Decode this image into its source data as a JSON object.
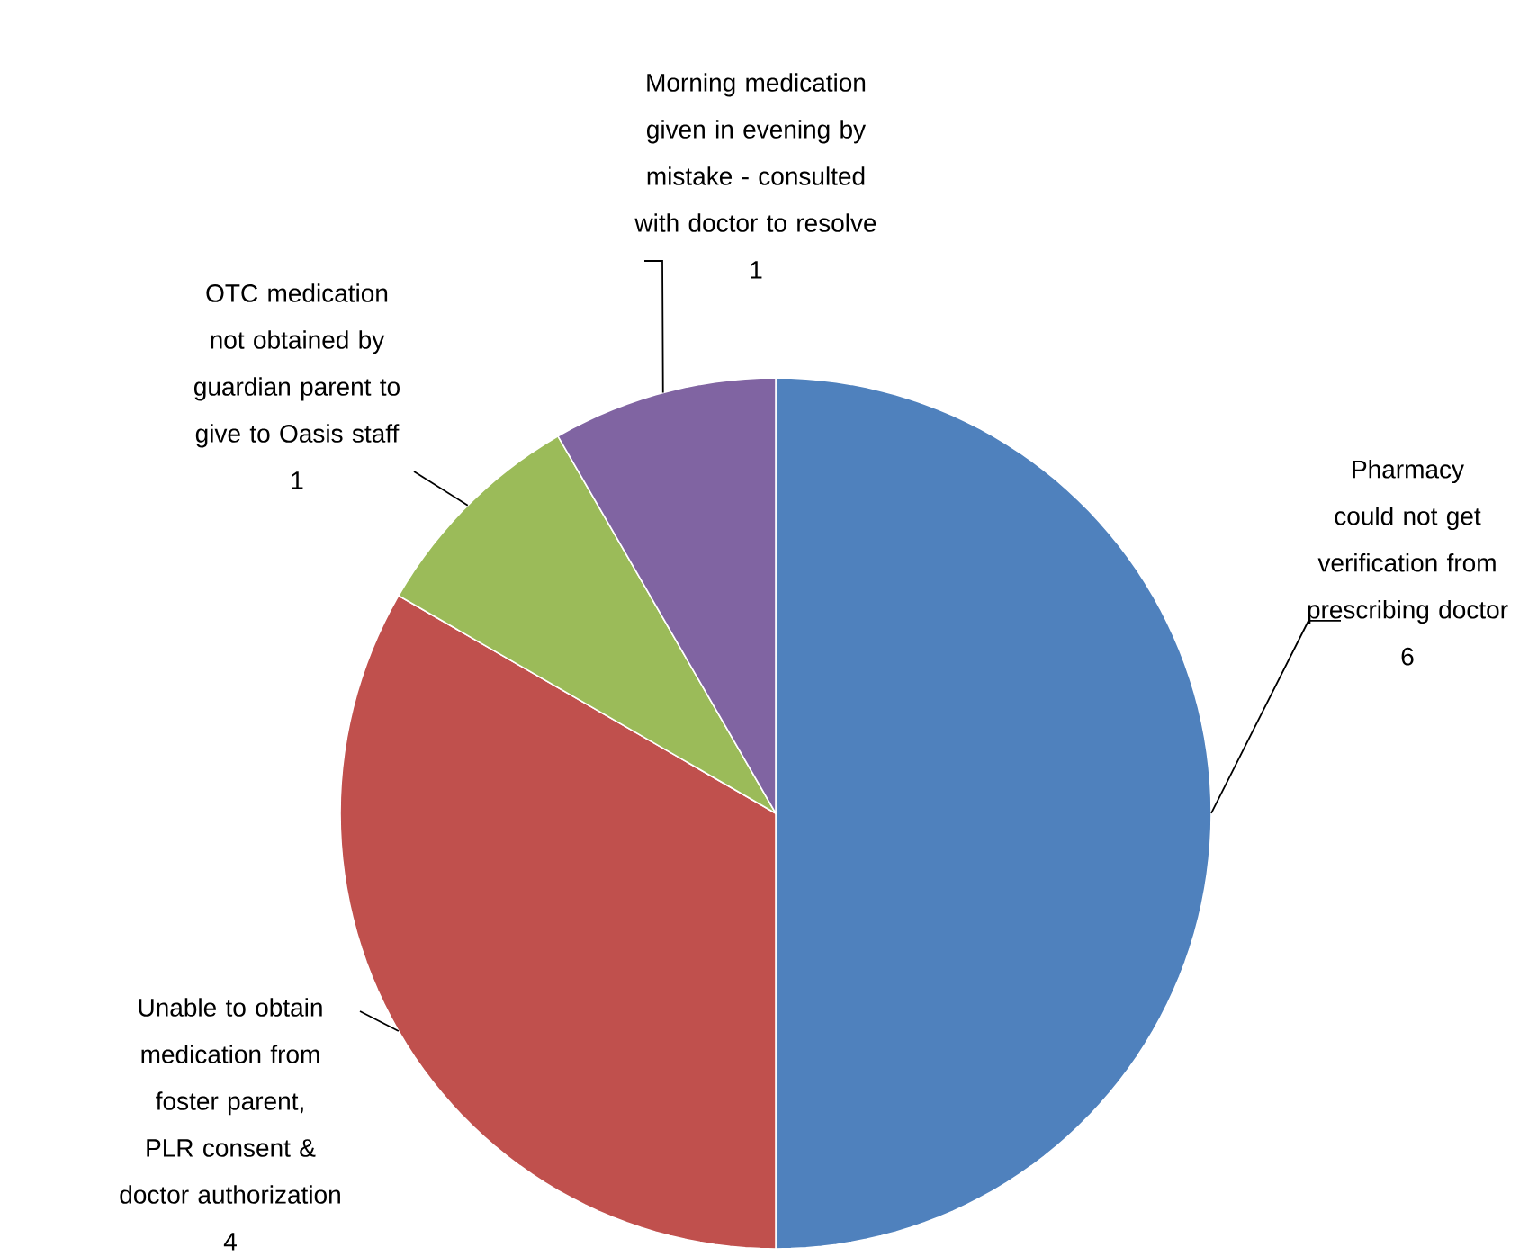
{
  "chart_data": {
    "type": "pie",
    "categories": [
      "Pharmacy could not get verification from prescribing doctor",
      "Unable to obtain medication from foster parent, PLR consent & doctor authorization",
      "OTC medication not obtained by guardian parent to give to Oasis staff",
      "Morning medication given in evening by mistake - consulted with doctor to resolve"
    ],
    "values": [
      6,
      4,
      1,
      1
    ],
    "colors": [
      "#4f81bd",
      "#c0504d",
      "#9bbb59",
      "#8064a2"
    ],
    "data_labels": true
  }
}
